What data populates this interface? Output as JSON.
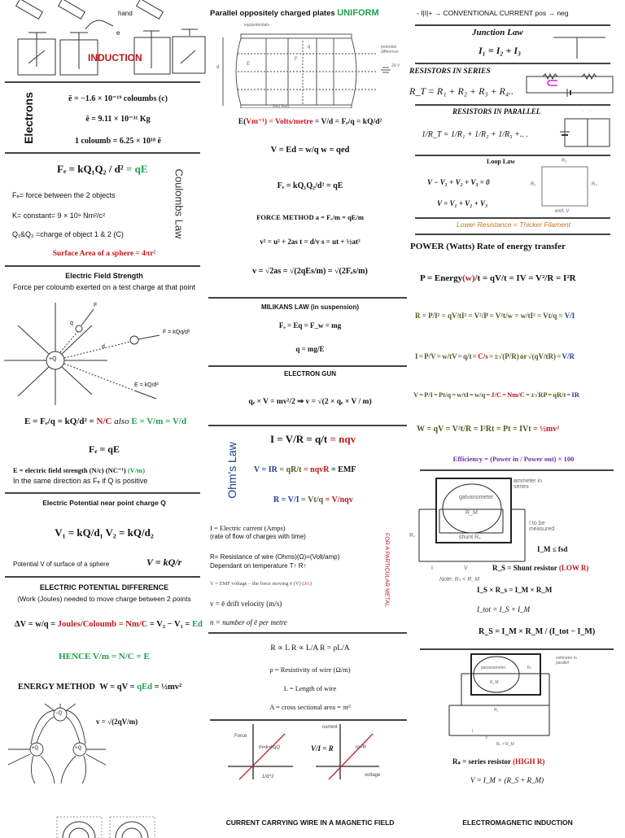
{
  "left": {
    "induction": {
      "title": "INDUCTION",
      "hand_label": "hand",
      "e_label": "e"
    },
    "electrons": {
      "heading": "Electrons",
      "lines": [
        "ē = −1.6 × 10⁻¹⁹ coloumbs (c)",
        "ē = 9.11 × 10⁻³¹ Kg",
        "1 coloumb = 6.25 × 10¹⁸ ē"
      ]
    },
    "coulomb": {
      "heading": "Coulombs Law",
      "formula": "Fₑ = kQ₁Q₂ / d²",
      "formula_tail": " = qE",
      "defs": [
        "Fₑ= force between the 2 objects",
        "K= constant= 9 × 10⁹ Nm²/c²",
        "Q₁&Q₂ =charge of object 1 & 2 (C)"
      ],
      "sphere_area": "Surface Area of a sphere = 4πr²"
    },
    "field_strength": {
      "title": "Electric Field Strength",
      "subtitle": "Force per coloumb exerted on a test charge at that point",
      "diagram_labels": {
        "charge": "+Q",
        "test": "q",
        "force": "F = kQq/d²",
        "field": "E = kQ/d²",
        "d": "d",
        "f": "F"
      },
      "formula_black": "E = Fₑ/q = kQ/d² = ",
      "formula_red": "N/C",
      "formula_also": "  also  ",
      "formula_green": "E = V/m = V/d",
      "force": "Fₑ = qE",
      "def_black": "E = electric field strength (N/c) (NC⁻¹)",
      "def_green": " (V/m)",
      "direction": "In the same direction as Fₑ if Q is positive"
    },
    "potential": {
      "title": "Electric Potential near point charge Q",
      "formula": "V₁ = kQ/d₁     V₂ = kQ/d₂",
      "sphere_text": "Potential V of surface of a sphere",
      "sphere_formula": "V = kQ/r"
    },
    "pd": {
      "title": "ELECTRIC POTENTIAL DIFFERENCE",
      "subtitle": "(Work (Joules) needed to move charge between 2 points",
      "f1": "ΔV = w/q = ",
      "f2": "Joules/Coloumb = Nm/C",
      "f3": " = V₂ − V₁ = ",
      "f4": "Ed",
      "hence": "HENCE V/m = N/C = E",
      "energy_label": "ENERGY METHOD",
      "energy_black": "W = qV = ",
      "energy_green": "qEd",
      "energy_tail": " = ½mv²",
      "velocity": "v = √(2qV/m)",
      "charges": [
        "−Q",
        "+Q",
        "+Q"
      ]
    }
  },
  "middle": {
    "plates": {
      "title": "Parallel oppositely charged plates ",
      "title_accent": "UNIFORM",
      "labels": {
        "equipotentials": "equipotentials",
        "pd": "potential difference",
        "voltage": "20 V",
        "field_lines": "field lines",
        "d": "d",
        "E": "E",
        "F": "F",
        "q": "q"
      }
    },
    "field": {
      "e_black": "E(",
      "e_red": "Vm⁻¹) = Volts/metre",
      "e_tail": " = V/d = Fₑ/q = kQ/d²",
      "v": "V = Ed = w/q        w = qed",
      "fe": "Fₑ = kQ₁Q₂/d² = qE",
      "force_method": "FORCE METHOD    a = Fₑ/m = qE/m",
      "kinematics": "v² = u² + 2as   t = d/v   s = ut + ½at²",
      "velocity": "v = √2as = √(2qEs/m) = √(2Fₑs/m)"
    },
    "milikan": {
      "title": "MILIKANS LAW (in suspension)",
      "f1": "Fₑ = Eq = F_w = mg",
      "f2": "q = mg/E"
    },
    "gun": {
      "title": "ELECTRON GUN",
      "formula": "qₑ × V = mv²/2 ⇒ v = √(2 × qₑ × V / m)"
    },
    "ohm": {
      "heading": "Ohm's Law",
      "i_black": "I = V/R = q/t",
      "i_red": " = nqv",
      "v_blue": "V = IR",
      "v_olive": " = qR/t",
      "v_red": " = nqvR",
      "v_tail": " = EMF",
      "r_blue": "R = V/I",
      "r_olive": " = Vt/q",
      "r_red": " = V/nqv",
      "defs": [
        "I = Electric current (Amps)",
        "(rate of flow of charges with time)",
        "R= Resistance of wire (Ohms)(Ω)=(Volt/amp)",
        "Dependant on temperature T↑ R↑",
        "V = EMF voltage – the force moving ē (V)",
        "v = ē drift velocity (m/s)",
        "n = number of ē per metre"
      ],
      "emf_unit": " (J/c)",
      "side_note": "FOR A PARTICULAR METAL"
    },
    "resistivity": {
      "lines": [
        "R ∝ L    R ∝ L/A    R = ρL/A",
        "ρ = Resistivity of wire (Ω/m)",
        "L = Length of wire",
        "A = cross sectional area = πr²"
      ]
    },
    "graphs": {
      "g1": {
        "ylabel": "Force",
        "xlabel": "1/d^2",
        "slope": "m=k=kqQ"
      },
      "ratio": "V/I = R",
      "g2": {
        "ylabel": "current",
        "xlabel": "voltage",
        "slope": "m=R"
      },
      "line_color": "#b8262a"
    },
    "bottom_title": "CURRENT CARRYING WIRE IN A MAGNETIC FIELD"
  },
  "right": {
    "conventional": "- I|I|+ →  CONVENTIONAL CURRENT pos → neg",
    "junction": {
      "title": "Junction Law",
      "formula": "I₁ = I₂ + I₃",
      "labels": [
        "i₁",
        "i₂",
        "i₃"
      ]
    },
    "series": {
      "title": "RESISTORS IN SERIES",
      "formula": "R_T = R₁ + R₂ + R₃ + R₄..",
      "labels": [
        "R₁",
        "R₂",
        "Vₛ"
      ]
    },
    "parallel": {
      "title": "RESISTORS IN PARALLEL",
      "formula": "1/R_T = 1/R₁ + 1/R₂ + 1/R₃ +.. .",
      "labels": [
        "R₁",
        "R₂"
      ]
    },
    "loop": {
      "title": "Loop Law",
      "f1": "V − V₁ + V₂ + V₃ = 0",
      "f2": "V = V₁ + V₂ + V₃",
      "labels": [
        "R₁",
        "R₂",
        "R₃",
        "emf, V"
      ]
    },
    "filament": "Lower Resistance = Thicker Filament",
    "power": {
      "title": "POWER (Watts) Rate of energy transfer",
      "p_a": "P = Energy",
      "p_red": "(w)",
      "p_b": "/t = qV/t = IV = V²/R = I²R",
      "r_olive": "R = P/I² = qV/tI² = V²/P = V²t/w = w/tI² = Vt/q = ",
      "r_blue": "V/I",
      "i_olive": "I = P/V = w/tV = q/t = ",
      "i_red": "C/s",
      "i_tail": " = ±√(P/R) or √(qV/tR) = ",
      "i_blue": "V/R",
      "v_olive": "V = P/I = Pt/q = w/tI = w/q = ",
      "v_red": "J/C = Nm/C",
      "v_tail": " = ±√RP = qR/t = ",
      "v_blue": "IR",
      "w_olive": "W = qV = V²t/R = I²Rt = Pt = IVt = ",
      "w_red": "½mv²",
      "efficiency": "Efficiency = (Power in / Power out) × 100"
    },
    "ammeter": {
      "labels": {
        "galv": "galvanometer",
        "rm": "R_M",
        "shunt": "shunt Rₛ",
        "series": "ammeter in series",
        "measured": "I to be measured",
        "r1": "R₁",
        "i": "I",
        "v": "V",
        "note": "Note: Rₛ < R_M"
      },
      "fsd": "I_M ≤ fsd",
      "shunt_black": "R_S = Shunt resistor ",
      "shunt_red": "(LOW R)",
      "f1": "I_S × R_s = I_M × R_M",
      "f2": "I_tot = I_S + I_M",
      "f3": "R_S = I_M × R_M / (I_tot − I_M)"
    },
    "voltmeter": {
      "labels": {
        "galv": "galvanometer",
        "rm": "R_M",
        "rs": "Rₛ",
        "parallel": "voltmeter in parallel",
        "r1": "R₁",
        "i": "I",
        "v": "V",
        "note": "Rₛ > R_M"
      },
      "series_black": "Rₛ = series resistor ",
      "series_red": "(HIGH R)",
      "formula": "V = I_M × (R_S + R_M)"
    },
    "bottom_title": "ELECTROMAGNETIC INDUCTION"
  }
}
